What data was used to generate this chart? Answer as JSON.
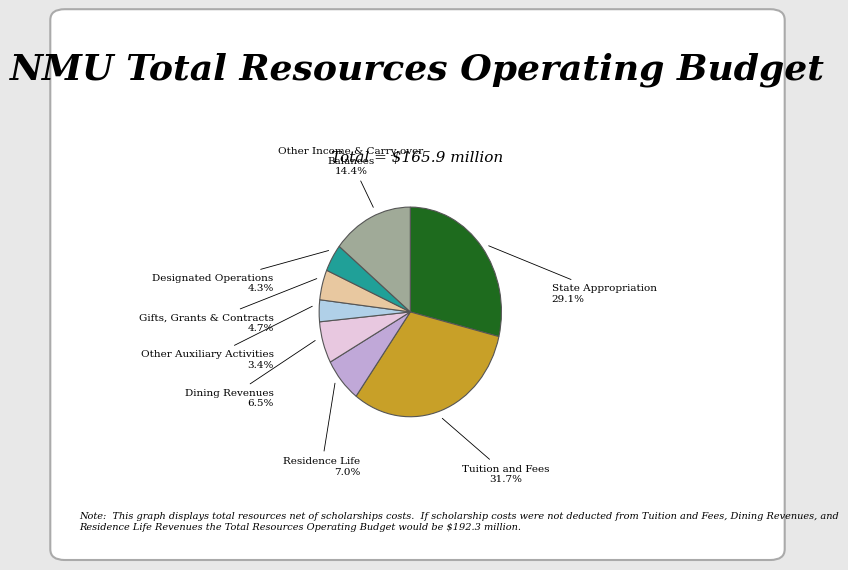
{
  "title": "NMU Total Resources Operating Budget",
  "subtitle": "Total = $165.9 million",
  "note": "Note:  This graph displays total resources net of scholarships costs.  If scholarship costs were not deducted from Tuition and Fees, Dining Revenues, and\nResidence Life Revenues the Total Resources Operating Budget would be $192.3 million.",
  "slices": [
    {
      "label": "State Appropriation\n29.1%",
      "value": 29.1,
      "color": "#1e6b1e"
    },
    {
      "label": "Tuition and Fees\n31.7%",
      "value": 31.7,
      "color": "#c8a028"
    },
    {
      "label": "Residence Life\n7.0%",
      "value": 7.0,
      "color": "#c0a8d8"
    },
    {
      "label": "Dining Revenues\n6.5%",
      "value": 6.5,
      "color": "#e8c8e0"
    },
    {
      "label": "Other Auxiliary Activities\n3.4%",
      "value": 3.4,
      "color": "#b0d0e8"
    },
    {
      "label": "Gifts, Grants & Contracts\n4.7%",
      "value": 4.7,
      "color": "#e8c8a0"
    },
    {
      "label": "Designated Operations\n4.3%",
      "value": 4.3,
      "color": "#20a098"
    },
    {
      "label": "Other Income & Carry-over\nBalances\n14.4%",
      "value": 14.4,
      "color": "#a0aa98"
    }
  ],
  "bg_color": "#e8e8e8",
  "bar1_color": "#2d6b00",
  "bar2_color": "#c8a800",
  "title_fontsize": 26,
  "subtitle_fontsize": 11,
  "note_fontsize": 7,
  "label_fontsize": 7.5
}
